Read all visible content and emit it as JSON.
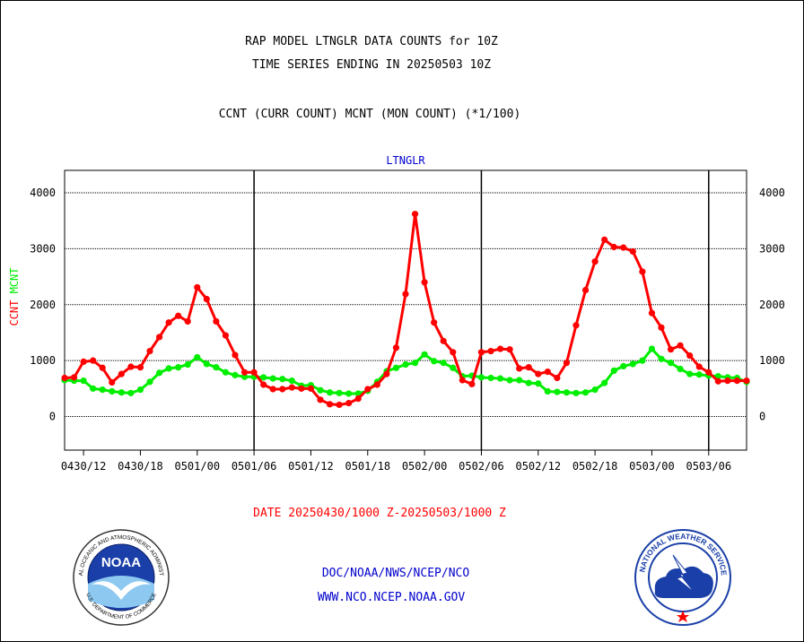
{
  "header": {
    "line1": "RAP MODEL LTNGLR DATA COUNTS for 10Z",
    "line2": "TIME SERIES ENDING IN 20250503 10Z",
    "line3": "CCNT (CURR COUNT) MCNT (MON COUNT) (*1/100)"
  },
  "footer": {
    "date_range": "DATE 20250430/1000 Z-20250503/1000 Z",
    "org_line": "DOC/NOAA/NWS/NCEP/NCO",
    "url_line": "WWW.NCO.NCEP.NOAA.GOV"
  },
  "logos": {
    "noaa_text": "NOAA",
    "noaa_ring": "NATIONAL OCEANIC AND ATMOSPHERIC ADMINISTRATION",
    "noaa_ring_bottom": "U.S. DEPARTMENT OF COMMERCE",
    "nws_ring": "NATIONAL WEATHER SERVICE"
  },
  "colors": {
    "ccnt": "#ff0000",
    "mcnt": "#00ee00",
    "title_blue": "#0000cc",
    "footer_red": "#ff0000",
    "footer_blue": "#0000cc"
  },
  "chart_data": {
    "type": "line",
    "title": "LTNGLR",
    "ylabel_red": "CCNT",
    "ylabel_green": "MCNT",
    "ylim": [
      -600,
      4400
    ],
    "yticks": [
      0,
      1000,
      2000,
      3000,
      4000
    ],
    "grid": true,
    "time_start_label": "0430/10",
    "x_tick_labels": [
      "0430/12",
      "0430/18",
      "0501/00",
      "0501/06",
      "0501/12",
      "0501/18",
      "0502/00",
      "0502/06",
      "0502/12",
      "0502/18",
      "0503/00",
      "0503/06"
    ],
    "x_tick_hours": [
      2,
      8,
      14,
      20,
      26,
      32,
      38,
      44,
      50,
      56,
      62,
      68
    ],
    "day_dividers_hours": [
      20,
      44,
      68
    ],
    "xlim_hours": [
      0,
      72
    ],
    "series": [
      {
        "name": "CCNT",
        "hours": [
          0,
          1,
          2,
          3,
          4,
          5,
          6,
          7,
          8,
          9,
          10,
          11,
          12,
          13,
          14,
          15,
          16,
          17,
          18,
          19,
          20,
          21,
          22,
          23,
          24,
          25,
          26,
          27,
          28,
          29,
          30,
          31,
          32,
          33,
          34,
          35,
          36,
          37,
          38,
          39,
          40,
          41,
          42,
          43,
          44,
          45,
          46,
          47,
          48,
          49,
          50,
          51,
          52,
          53,
          54,
          55,
          56,
          57,
          58,
          59,
          60,
          61,
          62,
          63,
          64,
          65,
          66,
          67,
          68,
          69,
          70,
          71,
          72
        ],
        "values": [
          690,
          700,
          980,
          1000,
          870,
          610,
          760,
          890,
          880,
          1170,
          1420,
          1680,
          1800,
          1700,
          2310,
          2100,
          1700,
          1450,
          1100,
          790,
          790,
          570,
          490,
          490,
          520,
          500,
          500,
          300,
          220,
          210,
          240,
          320,
          490,
          570,
          760,
          1230,
          2190,
          3620,
          2400,
          1680,
          1350,
          1150,
          650,
          580,
          1150,
          1170,
          1210,
          1200,
          860,
          880,
          760,
          800,
          690,
          960,
          1630,
          2260,
          2770,
          3160,
          3030,
          3020,
          2950,
          2590,
          1850,
          1590,
          1200,
          1270,
          1090,
          890,
          790,
          630,
          640,
          640,
          640
        ]
      },
      {
        "name": "MCNT",
        "hours": [
          0,
          1,
          2,
          3,
          4,
          5,
          6,
          7,
          8,
          9,
          10,
          11,
          12,
          13,
          14,
          15,
          16,
          17,
          18,
          19,
          20,
          21,
          22,
          23,
          24,
          25,
          26,
          27,
          28,
          29,
          30,
          31,
          32,
          33,
          34,
          35,
          36,
          37,
          38,
          39,
          40,
          41,
          42,
          43,
          44,
          45,
          46,
          47,
          48,
          49,
          50,
          51,
          52,
          53,
          54,
          55,
          56,
          57,
          58,
          59,
          60,
          61,
          62,
          63,
          64,
          65,
          66,
          67,
          68,
          69,
          70,
          71,
          72
        ],
        "values": [
          650,
          640,
          640,
          500,
          480,
          450,
          430,
          420,
          480,
          620,
          780,
          860,
          880,
          930,
          1060,
          940,
          880,
          790,
          740,
          710,
          710,
          700,
          680,
          670,
          640,
          550,
          560,
          470,
          430,
          420,
          410,
          410,
          460,
          620,
          810,
          870,
          930,
          960,
          1110,
          990,
          960,
          870,
          720,
          730,
          700,
          690,
          680,
          650,
          650,
          600,
          590,
          450,
          440,
          430,
          420,
          430,
          480,
          600,
          820,
          900,
          940,
          1000,
          1210,
          1030,
          960,
          850,
          760,
          750,
          730,
          720,
          700,
          690,
          620
        ]
      }
    ]
  }
}
